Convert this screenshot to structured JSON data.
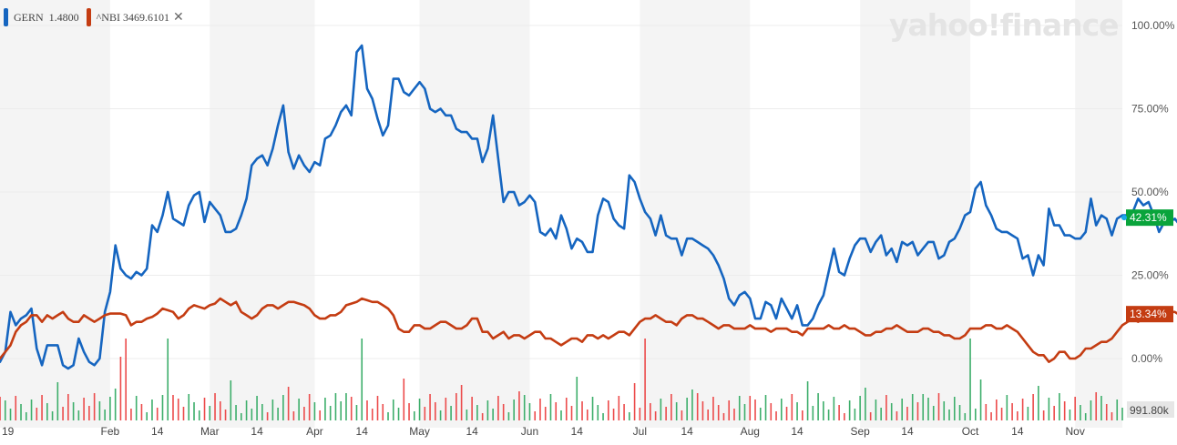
{
  "watermark": "yahoo!finance",
  "legend": {
    "gern": {
      "label": "GERN",
      "value": "1.4800",
      "color": "#1565c0"
    },
    "nbi": {
      "label": "^NBI",
      "value": "3469.6101",
      "color": "#c43c12"
    },
    "close_icon": "close-x-icon"
  },
  "chart_data": {
    "type": "line",
    "y_ticks": [
      "100.00%",
      "75.00%",
      "50.00%",
      "25.00%",
      "0.00%"
    ],
    "y_tick_values": [
      100,
      75,
      50,
      25,
      0
    ],
    "ylim": [
      -5,
      102
    ],
    "x_ticks": [
      "19",
      "Feb",
      "14",
      "Mar",
      "14",
      "Apr",
      "14",
      "May",
      "14",
      "Jun",
      "14",
      "Jul",
      "14",
      "Aug",
      "14",
      "Sep",
      "14",
      "Oct",
      "14",
      "Nov"
    ],
    "x_tick_positions": [
      0,
      21,
      30,
      40,
      49,
      60,
      69,
      80,
      90,
      101,
      110,
      122,
      131,
      143,
      152,
      164,
      173,
      185,
      194,
      205
    ],
    "n_points": 215,
    "series": [
      {
        "name": "GERN",
        "color": "#1565c0",
        "end_label": "42.31%",
        "values": [
          -1,
          2,
          14,
          10,
          12,
          13,
          15,
          3,
          -2,
          4,
          4,
          4,
          -2,
          -3,
          -2,
          6,
          2,
          -1,
          -2,
          0,
          14,
          20,
          34,
          27,
          25,
          24,
          26,
          25,
          27,
          40,
          38,
          43,
          50,
          42,
          41,
          40,
          46,
          49,
          50,
          41,
          47,
          45,
          43,
          38,
          38,
          39,
          43,
          48,
          58,
          60,
          61,
          58,
          63,
          70,
          76,
          62,
          57,
          61,
          58,
          56,
          59,
          58,
          66,
          67,
          70,
          74,
          76,
          73,
          92,
          94,
          81,
          78,
          72,
          67,
          70,
          84,
          84,
          80,
          79,
          81,
          83,
          81,
          75,
          74,
          75,
          73,
          73,
          69,
          68,
          68,
          66,
          66,
          59,
          63,
          73,
          60,
          47,
          50,
          50,
          46,
          47,
          49,
          47,
          38,
          37,
          39,
          36,
          43,
          39,
          33,
          36,
          35,
          32,
          32,
          43,
          48,
          47,
          42,
          40,
          39,
          55,
          53,
          48,
          44,
          42,
          37,
          43,
          37,
          36,
          36,
          31,
          36,
          36,
          35,
          34,
          33,
          31,
          28,
          24,
          18,
          16,
          19,
          20,
          18,
          12,
          12,
          17,
          16,
          12,
          18,
          15,
          12,
          16,
          10,
          10,
          12,
          16,
          19,
          26,
          33,
          26,
          25,
          30,
          34,
          36,
          36,
          32,
          35,
          37,
          31,
          33,
          29,
          35,
          34,
          35,
          31,
          33,
          35,
          35,
          30,
          31,
          35,
          36,
          39,
          43,
          44,
          51,
          53,
          46,
          43,
          39,
          38,
          38,
          37,
          36,
          30,
          31,
          25,
          31,
          28,
          45,
          40,
          40,
          37,
          37,
          36,
          36,
          38,
          48,
          40,
          43,
          42,
          37,
          42,
          43,
          43,
          44,
          48,
          46,
          47,
          43,
          38,
          41,
          41,
          42,
          40,
          43,
          42.31
        ]
      },
      {
        "name": "^NBI",
        "color": "#c43c12",
        "end_label": "13.34%",
        "values": [
          0,
          2,
          4,
          8,
          10,
          11,
          13,
          13,
          11,
          13,
          12,
          13,
          14,
          12,
          11,
          11,
          13,
          12,
          11,
          12,
          13,
          13.5,
          13.5,
          13.5,
          13,
          10,
          11,
          11,
          12,
          12.5,
          13.5,
          15,
          14.5,
          14,
          12,
          13,
          15,
          16,
          15.5,
          15,
          16,
          16.5,
          18,
          17,
          16,
          17,
          14,
          13,
          12,
          13,
          15,
          16,
          16,
          15,
          16,
          17,
          17,
          16.5,
          16,
          15,
          13,
          12,
          12,
          13,
          13,
          14,
          16,
          16.5,
          17,
          18,
          17.5,
          17,
          17,
          16,
          15,
          13,
          9,
          8,
          8,
          10,
          10,
          9,
          9,
          10,
          11,
          11,
          10,
          9,
          9,
          10,
          12,
          12,
          8,
          8,
          6,
          7,
          8,
          6,
          7,
          7,
          6,
          7,
          8,
          8,
          6,
          6,
          5,
          4,
          5,
          6,
          6,
          5,
          7,
          7,
          6,
          7,
          6,
          7,
          8,
          8,
          7,
          9,
          11,
          12,
          12,
          13,
          12,
          11,
          11,
          10,
          12,
          13,
          13,
          12,
          12,
          11,
          10,
          9,
          10,
          10,
          9,
          9,
          9,
          10,
          9,
          9,
          9,
          8,
          9,
          9,
          9,
          8,
          8,
          7,
          9,
          9,
          9,
          9,
          10,
          9,
          9,
          10,
          9,
          9,
          8,
          7,
          7,
          8,
          8,
          9,
          9,
          10,
          9,
          8,
          8,
          8,
          9,
          9,
          8,
          8,
          7,
          7,
          6,
          6,
          7,
          9,
          9,
          9,
          10,
          10,
          9,
          9,
          10,
          9,
          8,
          6,
          4,
          2,
          1,
          1,
          -1,
          0,
          2,
          2,
          0,
          0,
          1,
          3,
          3,
          4,
          5,
          5,
          6,
          8,
          10,
          11,
          12,
          11,
          12,
          12,
          12,
          12,
          13,
          14,
          14,
          13,
          13,
          12.5,
          13.34
        ]
      }
    ],
    "volume": {
      "max_label": "991.80k",
      "up_color": "#3dae6b",
      "down_color": "#ec4b4b"
    }
  }
}
